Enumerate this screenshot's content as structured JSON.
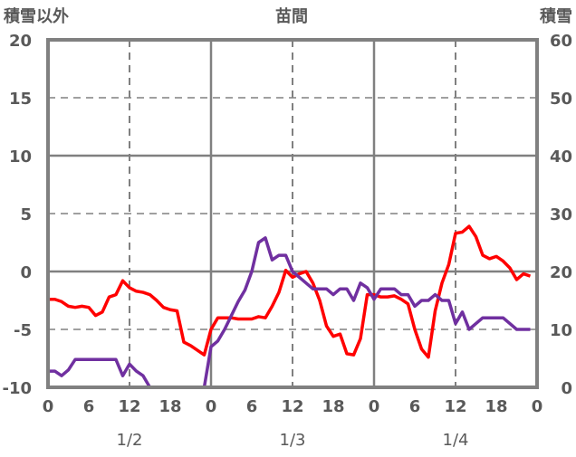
{
  "chart_data": {
    "type": "line",
    "title": "苗間",
    "ylabel_left": "積雪以外",
    "ylabel_right": "積雪",
    "ylim_left": [
      -10,
      20
    ],
    "ylim_right": [
      0,
      60
    ],
    "yticks_left": [
      "20",
      "15",
      "10",
      "5",
      "0",
      "-5",
      "-10"
    ],
    "yticks_right": [
      "60",
      "50",
      "40",
      "30",
      "20",
      "10",
      "0"
    ],
    "xticks": [
      "0",
      "6",
      "12",
      "18",
      "0",
      "6",
      "12",
      "18",
      "0",
      "6",
      "12",
      "18",
      "0"
    ],
    "date_labels": [
      "1/2",
      "1/3",
      "1/4"
    ],
    "grid": true,
    "series": [
      {
        "name": "積雪以外",
        "axis": "left",
        "color": "#ff0000",
        "values": [
          -2.4,
          -2.4,
          -2.6,
          -3.0,
          -3.1,
          -3.0,
          -3.1,
          -3.8,
          -3.5,
          -2.2,
          -2.0,
          -0.8,
          -1.4,
          -1.7,
          -1.8,
          -2.0,
          -2.5,
          -3.1,
          -3.3,
          -3.4,
          -6.1,
          -6.4,
          -6.8,
          -7.2,
          -5.0,
          -4.0,
          -4.0,
          -4.0,
          -4.1,
          -4.1,
          -4.1,
          -3.9,
          -4.0,
          -3.0,
          -1.8,
          0.1,
          -0.5,
          -0.2,
          0.0,
          -1.0,
          -2.5,
          -4.7,
          -5.6,
          -5.4,
          -7.1,
          -7.2,
          -5.8,
          -2.0,
          -2.0,
          -2.2,
          -2.2,
          -2.1,
          -2.4,
          -2.8,
          -5.0,
          -6.7,
          -7.4,
          -3.4,
          -1.0,
          0.6,
          3.3,
          3.4,
          3.9,
          3.0,
          1.4,
          1.1,
          1.3,
          0.9,
          0.3,
          -0.7,
          -0.2,
          -0.4
        ]
      },
      {
        "name": "積雪",
        "axis": "right",
        "color": "#7030a0",
        "values": [
          2.8,
          2.8,
          2,
          3,
          4.8,
          4.8,
          4.8,
          4.8,
          4.8,
          4.8,
          4.8,
          2,
          4,
          2.8,
          2,
          0,
          0,
          0,
          0,
          0,
          0,
          0,
          0,
          0,
          7,
          8,
          10,
          12.4,
          14.8,
          16.8,
          20,
          25,
          25.8,
          22,
          22.8,
          22.8,
          20,
          19,
          18,
          17,
          17,
          17,
          16,
          17,
          17,
          15,
          18,
          17.2,
          15.2,
          17,
          17,
          17,
          16,
          16,
          14,
          15,
          15,
          16,
          15,
          15,
          11,
          13,
          10,
          11,
          12,
          12,
          12,
          12,
          11,
          10,
          10,
          10
        ]
      }
    ]
  }
}
